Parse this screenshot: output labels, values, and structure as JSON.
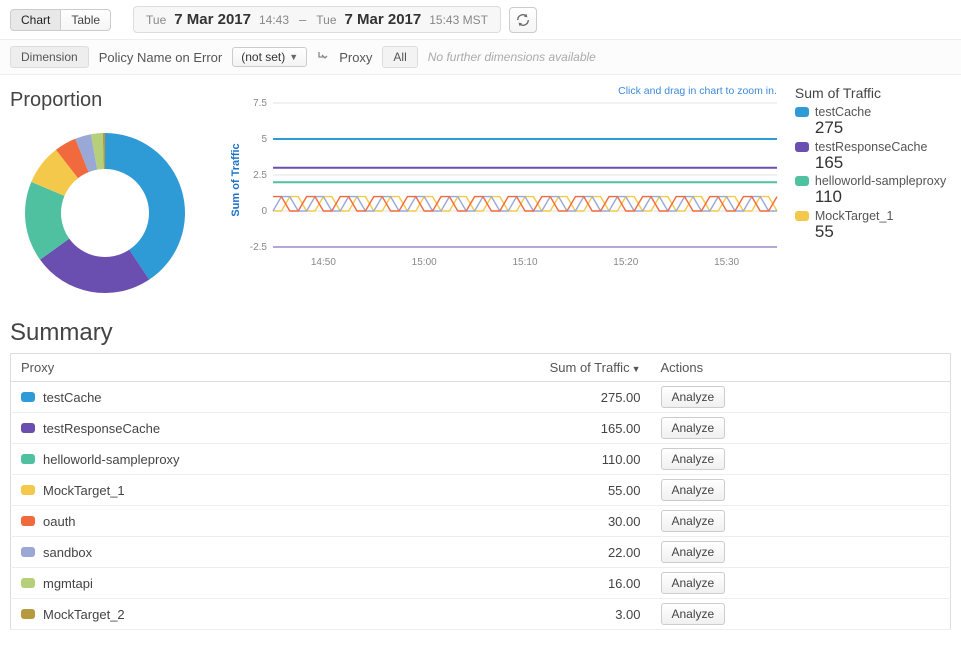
{
  "toolbar": {
    "tab_chart": "Chart",
    "tab_table": "Table",
    "active_tab": "Chart",
    "date_from_prefix": "Tue",
    "date_from_main": "7 Mar 2017",
    "date_from_time": "14:43",
    "date_to_prefix": "Tue",
    "date_to_main": "7 Mar 2017",
    "date_to_time": "15:43 MST"
  },
  "filter": {
    "dimension_label": "Dimension",
    "policy_label": "Policy Name on Error",
    "policy_value": "(not set)",
    "proxy_label": "Proxy",
    "all_label": "All",
    "no_more": "No further dimensions available"
  },
  "charts": {
    "proportion_title": "Proportion",
    "zoom_hint": "Click and drag in chart to zoom in.",
    "y_axis_label": "Sum of Traffic",
    "y_ticks": [
      -2.5,
      0,
      2.5,
      5,
      7.5
    ],
    "y_min": -2.5,
    "y_max": 7.5,
    "x_ticks": [
      "14:50",
      "15:00",
      "15:10",
      "15:20",
      "15:30"
    ],
    "donut_colors": {
      "testCache": "#2e9bd6",
      "testResponseCache": "#6b4fb0",
      "helloworld": "#4fc1a0",
      "mocktarget1": "#f4c94b",
      "oauth": "#f06a3e",
      "sandbox": "#9aa8d6",
      "mgmtapi": "#b5cf7a",
      "mocktarget2": "#b59a3e"
    },
    "donut_inner_ratio": 0.55,
    "line_colors": {
      "testCache": "#2e9bd6",
      "testResponseCache": "#6b4fb0",
      "helloworld": "#4fc1a0",
      "mocktarget1": "#f4c94b",
      "oauth": "#f06a3e",
      "sandbox": "#9aa8d6"
    },
    "lines_flat": {
      "testCache": 5.0,
      "testResponseCache": 3.0,
      "helloworld": 2.0
    },
    "lines_zigzag": [
      "mocktarget1",
      "sandbox",
      "oauth"
    ],
    "zigzag_low": 0,
    "zigzag_high": 1.0,
    "chart_bg": "#ffffff",
    "grid_color": "#e3e3e3"
  },
  "legend": {
    "title": "Sum of Traffic",
    "items": [
      {
        "name": "testCache",
        "value": "275",
        "color": "#2e9bd6"
      },
      {
        "name": "testResponseCache",
        "value": "165",
        "color": "#6b4fb0"
      },
      {
        "name": "helloworld-sampleproxy",
        "value": "110",
        "color": "#4fc1a0"
      },
      {
        "name": "MockTarget_1",
        "value": "55",
        "color": "#f4c94b"
      }
    ]
  },
  "summary": {
    "title": "Summary",
    "col_proxy": "Proxy",
    "col_sum": "Sum of Traffic",
    "col_actions": "Actions",
    "analyze_label": "Analyze",
    "rows": [
      {
        "name": "testCache",
        "value": "275.00",
        "color": "#2e9bd6"
      },
      {
        "name": "testResponseCache",
        "value": "165.00",
        "color": "#6b4fb0"
      },
      {
        "name": "helloworld-sampleproxy",
        "value": "110.00",
        "color": "#4fc1a0"
      },
      {
        "name": "MockTarget_1",
        "value": "55.00",
        "color": "#f4c94b"
      },
      {
        "name": "oauth",
        "value": "30.00",
        "color": "#f06a3e"
      },
      {
        "name": "sandbox",
        "value": "22.00",
        "color": "#9aa8d6"
      },
      {
        "name": "mgmtapi",
        "value": "16.00",
        "color": "#b5cf7a"
      },
      {
        "name": "MockTarget_2",
        "value": "3.00",
        "color": "#b59a3e"
      }
    ]
  }
}
